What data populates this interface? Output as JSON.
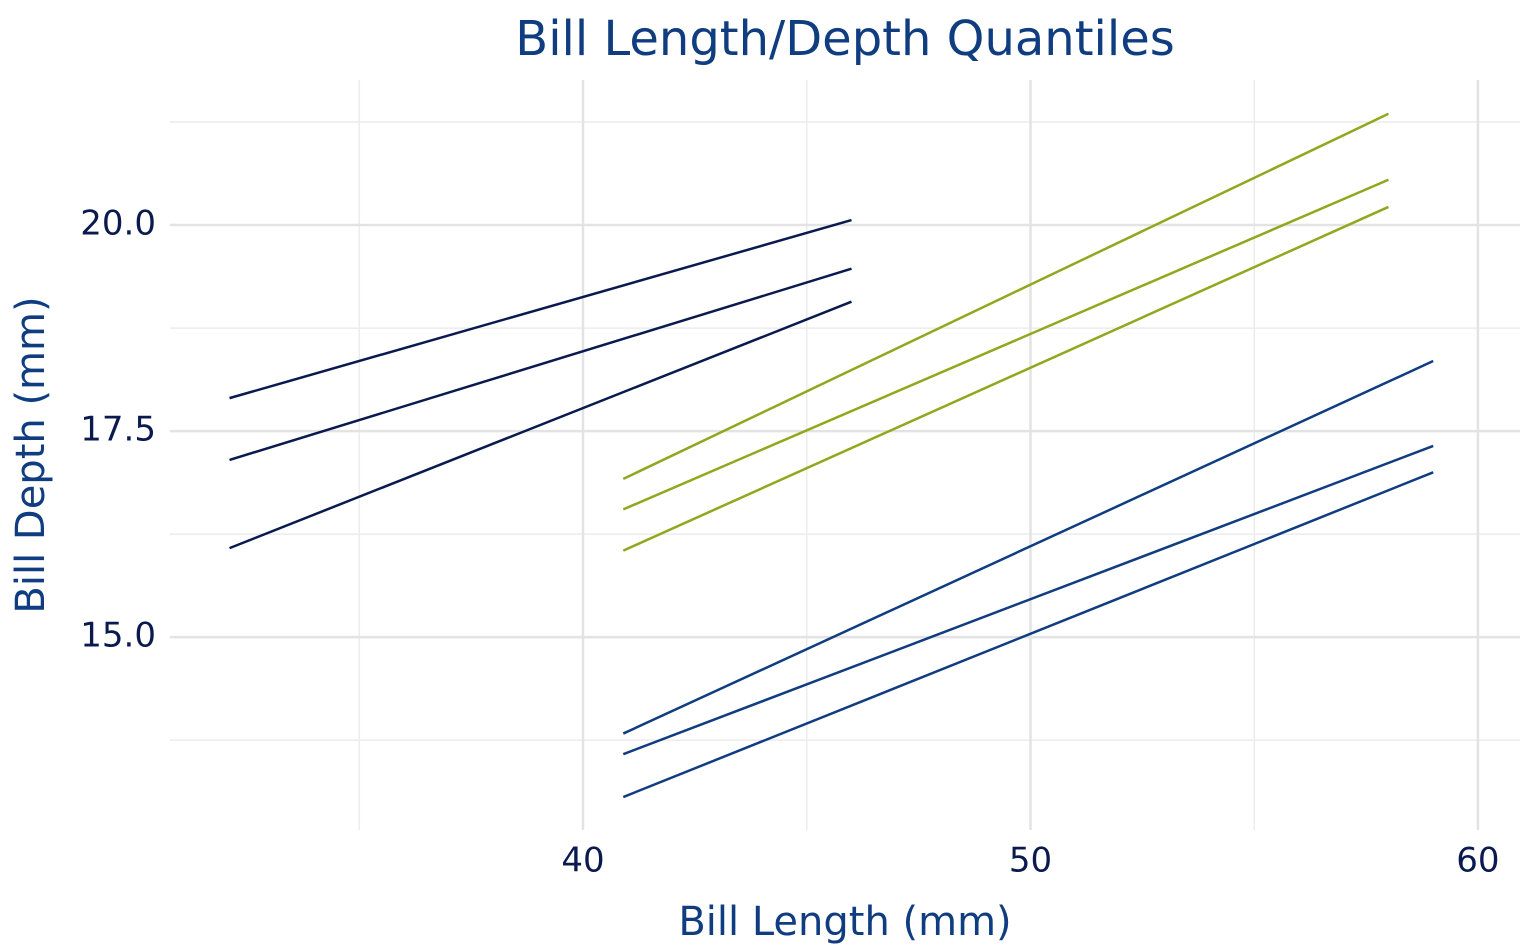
{
  "chart_data": {
    "type": "line",
    "title": "Bill Length/Depth Quantiles",
    "x_label": "Bill Length (mm)",
    "y_label": "Bill Depth (mm)",
    "xlim": [
      30.77,
      60.94
    ],
    "ylim": [
      12.66,
      21.76
    ],
    "xticks": [
      40,
      50,
      60
    ],
    "yticks": [
      {
        "value": 15,
        "label": "15.0"
      },
      17.5,
      {
        "value": 20,
        "label": "20.0"
      }
    ],
    "minor_xticks": [
      35,
      45,
      55
    ],
    "minor_yticks": [
      13.75,
      16.25,
      18.75,
      21.25
    ],
    "grid": true,
    "series": [
      {
        "color": "#0a1a4f",
        "x": [
          32.1,
          46.0
        ],
        "values": [
          17.9,
          20.06
        ]
      },
      {
        "color": "#0a1a4f",
        "x": [
          32.1,
          46.0
        ],
        "values": [
          17.15,
          19.47
        ]
      },
      {
        "color": "#0a1a4f",
        "x": [
          32.1,
          46.0
        ],
        "values": [
          16.08,
          19.07
        ]
      },
      {
        "color": "#8fa81e",
        "x": [
          40.9,
          58.0
        ],
        "values": [
          16.92,
          21.35
        ]
      },
      {
        "color": "#8fa81e",
        "x": [
          40.9,
          58.0
        ],
        "values": [
          16.55,
          20.55
        ]
      },
      {
        "color": "#8fa81e",
        "x": [
          40.9,
          58.0
        ],
        "values": [
          16.05,
          20.22
        ]
      },
      {
        "color": "#0f3d80",
        "x": [
          40.9,
          59.0
        ],
        "values": [
          13.83,
          18.35
        ]
      },
      {
        "color": "#0f3d80",
        "x": [
          40.9,
          59.0
        ],
        "values": [
          13.58,
          17.32
        ]
      },
      {
        "color": "#0f3d80",
        "x": [
          40.9,
          59.0
        ],
        "values": [
          13.06,
          17.0
        ]
      }
    ]
  }
}
